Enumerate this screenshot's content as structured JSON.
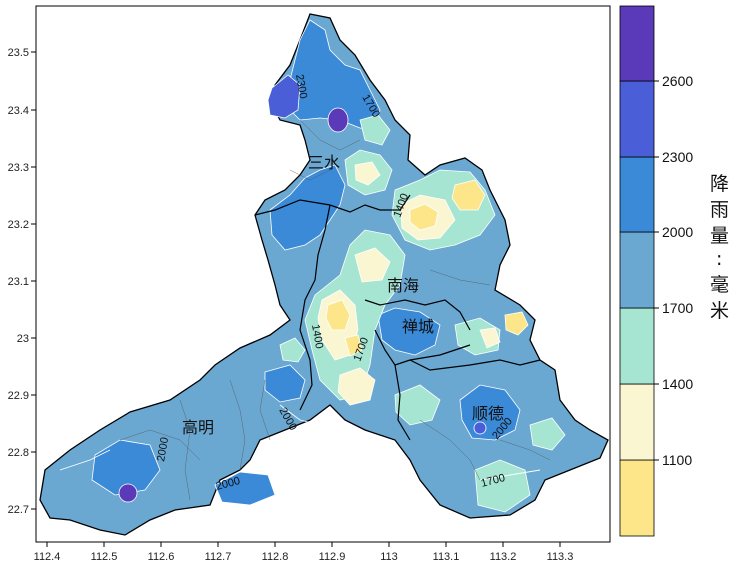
{
  "map": {
    "x_ticks": [
      "112.4",
      "112.5",
      "112.6",
      "112.7",
      "112.8",
      "112.9",
      "113",
      "113.1",
      "113.2",
      "113.3"
    ],
    "y_ticks": [
      "23.5",
      "23.4",
      "23.3",
      "23.2",
      "23.1",
      "23",
      "22.9",
      "22.8",
      "22.7"
    ],
    "places": [
      {
        "name": "三水"
      },
      {
        "name": "南海"
      },
      {
        "name": "禅城"
      },
      {
        "name": "高明"
      },
      {
        "name": "顺德"
      }
    ],
    "contour_labels": [
      "2300",
      "2000",
      "2000",
      "2000",
      "2000",
      "1700",
      "1700",
      "1400",
      "1400",
      "1700"
    ],
    "fill_colors": {
      "c1100": "#fde68a",
      "c1400": "#fbf6d2",
      "c1700": "#a6e5d2",
      "c2000": "#6aa8d2",
      "c2300": "#3a8ad8",
      "c2600": "#4a5ed8",
      "c2900": "#5a3ab8"
    }
  },
  "legend": {
    "title_chars": [
      "降",
      "雨",
      "量",
      ":",
      "毫",
      "米"
    ],
    "ticks": [
      "1100",
      "1400",
      "1700",
      "2000",
      "2300",
      "2600"
    ],
    "colors": [
      "#fde68a",
      "#fbf6d2",
      "#a6e5d2",
      "#6aa8d2",
      "#3a8ad8",
      "#4a5ed8",
      "#5a3ab8"
    ]
  }
}
